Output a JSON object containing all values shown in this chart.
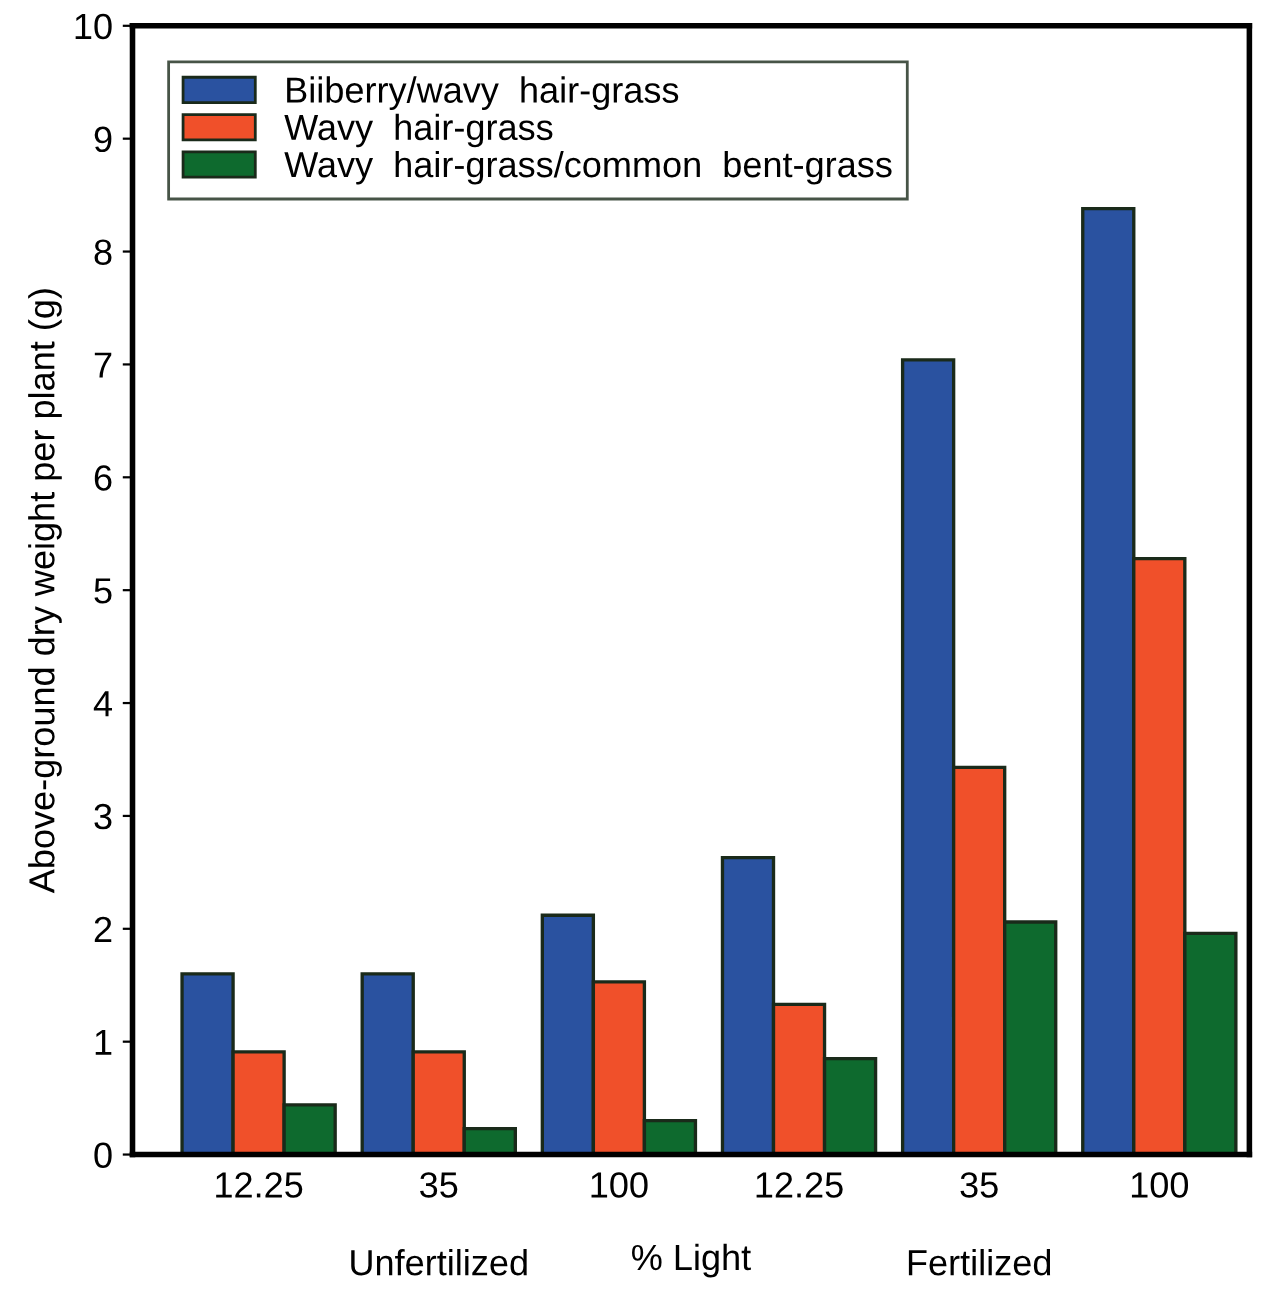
{
  "chart_data": {
    "type": "bar",
    "xlabel": "% Light",
    "ylabel": "Above-ground dry weight per plant (g)",
    "categories": [
      "12.25",
      "35",
      "100",
      "12.25",
      "35",
      "100"
    ],
    "series": [
      {
        "name": "Biiberry/wavy  hair-grass",
        "color": "#2a52a0",
        "values": [
          1.6,
          1.6,
          2.12,
          2.63,
          7.04,
          8.38
        ]
      },
      {
        "name": "Wavy  hair-grass",
        "color": "#f0502a",
        "values": [
          0.91,
          0.91,
          1.53,
          1.33,
          3.43,
          5.28
        ]
      },
      {
        "name": "Wavy  hair-grass/common  bent-grass",
        "color": "#0e6a2e",
        "values": [
          0.44,
          0.23,
          0.3,
          0.85,
          2.06,
          1.96
        ]
      }
    ],
    "annotations": [
      "Unfertilized",
      "Fertilized"
    ],
    "ylim": [
      0,
      10
    ],
    "yticks": [
      0,
      1,
      2,
      3,
      4,
      5,
      6,
      7,
      8,
      9,
      10
    ],
    "grid": false,
    "legend": "top left"
  }
}
